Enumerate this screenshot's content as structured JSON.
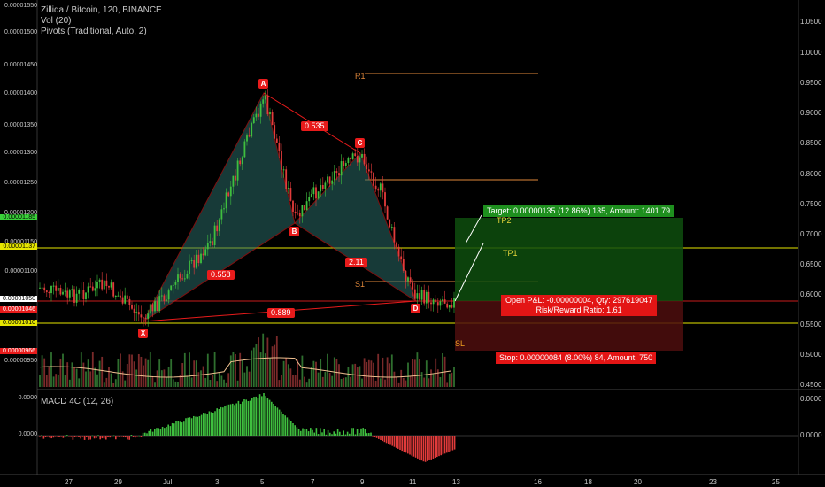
{
  "header": {
    "symbol": "Zilliqa / Bitcoin, 120, BINANCE",
    "vol": "Vol (20)",
    "pivots": "Pivots (Traditional, Auto, 2)",
    "macd": "MACD 4C (12, 26)"
  },
  "pattern_points": {
    "x": "X",
    "a": "A",
    "b": "B",
    "c": "C",
    "d": "D"
  },
  "ratios": {
    "xab": "0.558",
    "abc": "0.535",
    "bcd": "2.11",
    "xad": "0.889"
  },
  "pivots": {
    "r1": "R1",
    "s1": "S1"
  },
  "targets": {
    "tp1": "TP1",
    "tp2": "TP2",
    "sl": "SL"
  },
  "trade": {
    "target": "Target: 0.00000135 (12.86%) 135, Amount: 1401.79",
    "open_pnl": "Open P&L: -0.00000004, Qty: 297619047",
    "risk_reward": "Risk/Reward Ratio: 1.61",
    "stop": "Stop: 0.00000084 (8.00%) 84, Amount: 750"
  },
  "left_axis": [
    "0.00001550",
    "0.00001500",
    "0.00001450",
    "0.00001400",
    "0.00001350",
    "0.00001300",
    "0.00001250",
    "0.00001200",
    "0.00001150",
    "0.00001100",
    "0.00000950"
  ],
  "left_axis_highlights": [
    {
      "text": "0.00001185",
      "color": "#3ad13a"
    },
    {
      "text": "0.00001137",
      "color": "#e6e600"
    },
    {
      "text": "0.00001050",
      "color": "#ffffff"
    },
    {
      "text": "0.00001046",
      "color": "#e81b1b"
    },
    {
      "text": "0.00001010",
      "color": "#e6e600"
    },
    {
      "text": "0.00000966",
      "color": "#e81b1b"
    }
  ],
  "right_axis": [
    "1.0500",
    "1.0000",
    "0.9500",
    "0.9000",
    "0.8500",
    "0.8000",
    "0.7500",
    "0.7000",
    "0.6500",
    "0.6000",
    "0.5500",
    "0.5000",
    "0.4500"
  ],
  "macd_axis_left": [
    "0.0000",
    "0.0000"
  ],
  "macd_axis_right": [
    "0.0000",
    "0.0000"
  ],
  "x_axis": [
    "27",
    "29",
    "Jul",
    "3",
    "5",
    "7",
    "9",
    "11",
    "13",
    "16",
    "18",
    "20",
    "23",
    "25"
  ],
  "colors": {
    "bull": "#3fbf3f",
    "bear": "#e23b3b",
    "pattern_line": "#e81b1b",
    "pattern_fill": "#2a6b66",
    "target_zone": "#0e4d0e",
    "stop_zone": "#4d0e0e"
  }
}
